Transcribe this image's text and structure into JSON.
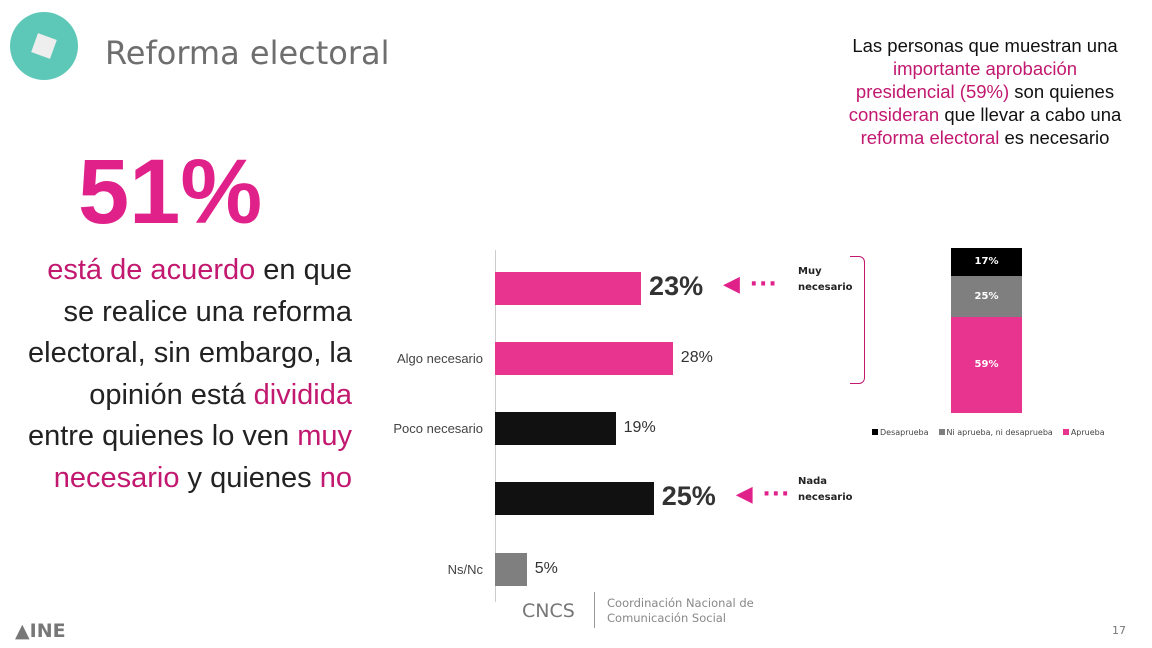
{
  "header": {
    "title": "Reforma electoral",
    "icon": "ballot-box-icon"
  },
  "headline": {
    "value": "51%",
    "text_parts": [
      {
        "t": "está de acuerdo",
        "hl": true
      },
      {
        "t": " en que se realice una reforma electoral, sin embargo, la opinión está ",
        "hl": false
      },
      {
        "t": "dividida",
        "hl": true
      },
      {
        "t": " entre quienes lo ven ",
        "hl": false
      },
      {
        "t": "muy necesario",
        "hl": true
      },
      {
        "t": " y quienes ",
        "hl": false
      },
      {
        "t": "no",
        "hl": true
      }
    ]
  },
  "note": {
    "parts": [
      {
        "t": "Las personas que muestran una ",
        "hl": false
      },
      {
        "t": "importante aprobación presidencial",
        "hl": true
      },
      {
        "t": " (59%)",
        "hl": true
      },
      {
        "t": " son quienes ",
        "hl": false
      },
      {
        "t": "consideran",
        "hl": true
      },
      {
        "t": " que llevar a cabo una ",
        "hl": false
      },
      {
        "t": "reforma electoral",
        "hl": true
      },
      {
        "t": " es necesario",
        "hl": false
      }
    ]
  },
  "chart_data": [
    {
      "type": "bar",
      "orientation": "horizontal",
      "categories": [
        "",
        "Algo necesario",
        "Poco necesario",
        "",
        "Ns/Nc"
      ],
      "values": [
        23,
        28,
        19,
        25,
        5
      ],
      "value_labels": [
        "23%",
        "28%",
        "19%",
        "25%",
        "5%"
      ],
      "colors": [
        "#e8338f",
        "#e8338f",
        "#111111",
        "#111111",
        "#7f7f7f"
      ],
      "annotations": [
        {
          "text": "Muy necesario",
          "bar": 0
        },
        {
          "text": "Nada necesario",
          "bar": 3
        }
      ],
      "xlim": [
        0,
        30
      ]
    },
    {
      "type": "bar",
      "stacked": true,
      "series": [
        {
          "name": "Desaprueba",
          "value": 17,
          "label": "17%",
          "color": "#000000"
        },
        {
          "name": "Ni aprueba, ni desaprueba",
          "value": 25,
          "label": "25%",
          "color": "#7f7f7f"
        },
        {
          "name": "Aprueba",
          "value": 59,
          "label": "59%",
          "color": "#e8338f"
        }
      ],
      "legend": "bottom"
    }
  ],
  "footer": {
    "logo": "INE",
    "cncs": "CNCS",
    "org": "Coordinación Nacional de Comunicación Social",
    "page": "17"
  },
  "colors": {
    "accent": "#e0218a",
    "teal": "#5ec8b8"
  }
}
